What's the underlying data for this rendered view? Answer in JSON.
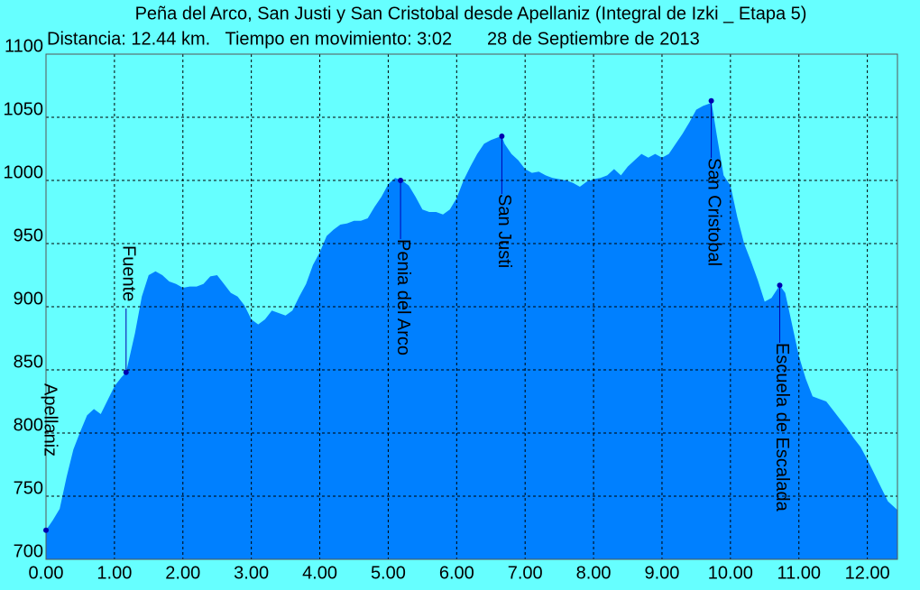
{
  "chart_data": {
    "type": "area",
    "title": "Peña del Arco, San Justi y San Cristobal desde Apellaniz (Integral de Izki _ Etapa 5)",
    "subtitle": "Distancia: 12.44 km.   Tiempo en movimiento: 3:02       28 de Septiembre de 2013",
    "x": [
      0.0,
      0.1,
      0.2,
      0.3,
      0.4,
      0.5,
      0.6,
      0.7,
      0.8,
      0.9,
      1.0,
      1.1,
      1.17,
      1.3,
      1.4,
      1.5,
      1.6,
      1.7,
      1.8,
      1.9,
      2.0,
      2.1,
      2.2,
      2.3,
      2.4,
      2.5,
      2.6,
      2.7,
      2.8,
      2.9,
      3.0,
      3.1,
      3.2,
      3.3,
      3.4,
      3.5,
      3.6,
      3.7,
      3.8,
      3.9,
      4.0,
      4.1,
      4.2,
      4.3,
      4.4,
      4.5,
      4.6,
      4.7,
      4.8,
      4.9,
      5.0,
      5.1,
      5.2,
      5.3,
      5.4,
      5.5,
      5.6,
      5.7,
      5.8,
      5.9,
      6.0,
      6.1,
      6.2,
      6.3,
      6.4,
      6.5,
      6.6,
      6.66,
      6.7,
      6.8,
      6.9,
      7.0,
      7.1,
      7.2,
      7.3,
      7.4,
      7.5,
      7.6,
      7.7,
      7.8,
      7.9,
      8.0,
      8.1,
      8.2,
      8.3,
      8.4,
      8.5,
      8.6,
      8.7,
      8.8,
      8.9,
      9.0,
      9.1,
      9.2,
      9.3,
      9.4,
      9.5,
      9.6,
      9.7,
      9.72,
      9.8,
      9.9,
      10.0,
      10.1,
      10.2,
      10.3,
      10.4,
      10.5,
      10.6,
      10.72,
      10.8,
      10.9,
      11.0,
      11.1,
      11.2,
      11.3,
      11.4,
      11.5,
      11.6,
      11.7,
      11.8,
      11.9,
      12.0,
      12.1,
      12.2,
      12.3,
      12.44
    ],
    "values": [
      723,
      731,
      740,
      765,
      787,
      801,
      814,
      819,
      815,
      826,
      837,
      844,
      848,
      879,
      908,
      925,
      928,
      925,
      920,
      918,
      915,
      916,
      916,
      918,
      924,
      925,
      918,
      911,
      908,
      901,
      890,
      886,
      890,
      897,
      895,
      893,
      897,
      908,
      918,
      933,
      943,
      956,
      961,
      965,
      966,
      968,
      968,
      970,
      979,
      987,
      997,
      1002,
      1000,
      996,
      987,
      977,
      975,
      975,
      973,
      977,
      986,
      1000,
      1011,
      1021,
      1029,
      1032,
      1034,
      1035,
      1029,
      1021,
      1016,
      1009,
      1006,
      1007,
      1004,
      1002,
      1001,
      1000,
      998,
      995,
      999,
      1001,
      1002,
      1004,
      1009,
      1004,
      1011,
      1016,
      1021,
      1018,
      1021,
      1018,
      1021,
      1029,
      1037,
      1046,
      1056,
      1059,
      1061,
      1063,
      1036,
      1004,
      996,
      971,
      950,
      936,
      921,
      904,
      907,
      917,
      911,
      886,
      861,
      843,
      829,
      827,
      825,
      818,
      811,
      804,
      796,
      789,
      779,
      768,
      757,
      746,
      739
    ],
    "color": "#0080ff",
    "waypoints": [
      {
        "name": "Apellaniz",
        "km": 0.0,
        "elevation": 723
      },
      {
        "name": "Fuente",
        "km": 1.17,
        "elevation": 848
      },
      {
        "name": "Penia del Arco",
        "km": 5.18,
        "elevation": 1000
      },
      {
        "name": "San Justi",
        "km": 6.66,
        "elevation": 1035
      },
      {
        "name": "San Cristobal",
        "km": 9.72,
        "elevation": 1063
      },
      {
        "name": "Escuela de Escalada",
        "km": 10.72,
        "elevation": 917
      }
    ],
    "marker_color": "#0000b0",
    "xlim": [
      0,
      12.44
    ],
    "xticks": [
      {
        "value": 0,
        "label": "0.00"
      },
      {
        "value": 1,
        "label": "1.00"
      },
      {
        "value": 2,
        "label": "2.00"
      },
      {
        "value": 3,
        "label": "3.00"
      },
      {
        "value": 4,
        "label": "4.00"
      },
      {
        "value": 5,
        "label": "5.00"
      },
      {
        "value": 6,
        "label": "6.00"
      },
      {
        "value": 7,
        "label": "7.00"
      },
      {
        "value": 8,
        "label": "8.00"
      },
      {
        "value": 9,
        "label": "9.00"
      },
      {
        "value": 10,
        "label": "10.00"
      },
      {
        "value": 11,
        "label": "11.00"
      },
      {
        "value": 12,
        "label": "12.00"
      }
    ],
    "ylim": [
      700,
      1100
    ],
    "yticks": [
      700,
      750,
      800,
      850,
      900,
      950,
      1000,
      1050,
      1100
    ],
    "grid": true
  }
}
